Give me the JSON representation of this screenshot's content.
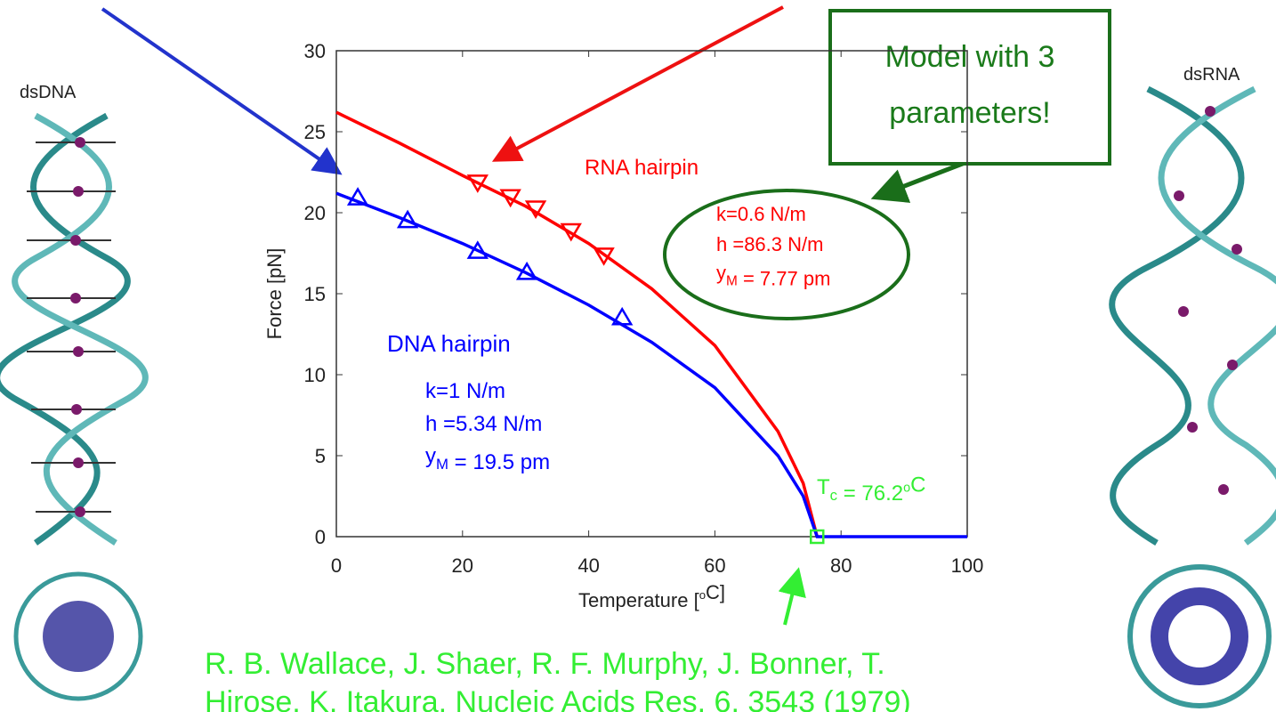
{
  "slide": {
    "left_label": "dsDNA",
    "right_label": "dsRNA",
    "callout": [
      "Model with 3",
      "parameters!"
    ],
    "citation": [
      "R. B. Wallace, J. Shaer, R. F. Murphy, J. Bonner, T.",
      "Hirose, K. Itakura, Nucleic Acids Res. 6, 3543 (1979)"
    ]
  },
  "chart_data": {
    "type": "line",
    "xlabel": [
      {
        "text": "Temperature ["
      },
      {
        "text": "o",
        "baseline": "sup"
      },
      {
        "text": "C]"
      }
    ],
    "ylabel": "Force [pN]",
    "xlim": [
      0,
      100
    ],
    "xticks": [
      0,
      20,
      40,
      60,
      80,
      100
    ],
    "ylim": [
      0,
      30
    ],
    "yticks": [
      0,
      5,
      10,
      15,
      20,
      25,
      30
    ],
    "series": [
      {
        "name": "RNA hairpin",
        "color": "#ff0000",
        "marker": "triangle-down",
        "x": [
          0,
          10,
          20,
          30,
          40,
          50,
          60,
          70,
          74,
          76.2
        ],
        "values": [
          26.2,
          24.3,
          22.3,
          20.4,
          18.1,
          15.3,
          11.8,
          6.5,
          3.3,
          0
        ],
        "marker_x": [
          22.4,
          27.6,
          31.6,
          37.2,
          42.4
        ],
        "marker_values": [
          21.9,
          21.0,
          20.3,
          18.9,
          17.4
        ],
        "params": [
          [
            {
              "text": "k=0.6 N/m"
            }
          ],
          [
            {
              "text": "h =86.3 N/m"
            }
          ],
          [
            {
              "text": "y"
            },
            {
              "text": "M",
              "baseline": "sub"
            },
            {
              "text": " = 7.77 pm"
            }
          ]
        ]
      },
      {
        "name": "DNA hairpin",
        "color": "#0000ff",
        "marker": "triangle-up",
        "x": [
          0,
          10,
          20,
          30,
          40,
          50,
          60,
          70,
          74,
          76.2,
          100
        ],
        "values": [
          21.2,
          19.7,
          18.1,
          16.3,
          14.3,
          12.0,
          9.2,
          5.0,
          2.5,
          0,
          0
        ],
        "marker_x": [
          3.4,
          11.3,
          22.4,
          30.2,
          45.3
        ],
        "marker_values": [
          20.9,
          19.5,
          17.6,
          16.3,
          13.5
        ],
        "params": [
          [
            {
              "text": "k=1 N/m"
            }
          ],
          [
            {
              "text": "h =5.34 N/m"
            }
          ],
          [
            {
              "text": "y"
            },
            {
              "text": "M",
              "baseline": "sub"
            },
            {
              "text": " = 19.5 pm"
            }
          ]
        ]
      }
    ],
    "critical_point": {
      "x": 76.2,
      "value": 0,
      "color": "#33ee33",
      "label": [
        {
          "text": "T"
        },
        {
          "text": "c",
          "baseline": "sub"
        },
        {
          "text": " = 76.2"
        },
        {
          "text": "o",
          "baseline": "sup"
        },
        {
          "text": "C"
        }
      ]
    }
  }
}
